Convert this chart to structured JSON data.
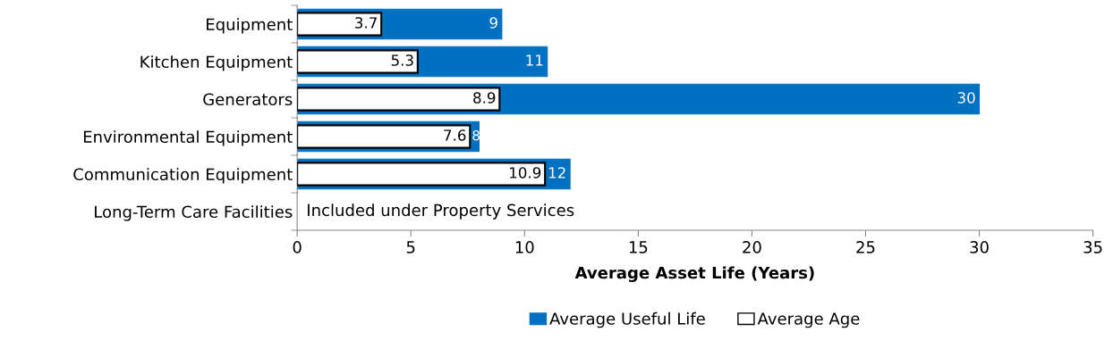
{
  "chart_data": {
    "type": "bar",
    "orientation": "horizontal",
    "xlabel": "Average Asset Life (Years)",
    "categories": [
      "Equipment",
      "Kitchen Equipment",
      "Generators",
      "Environmental Equipment",
      "Communication Equipment",
      "Long-Term Care Facilities"
    ],
    "series": [
      {
        "name": "Average Useful Life",
        "color": "#0070c0",
        "values": [
          9,
          11,
          30,
          8,
          12,
          null
        ]
      },
      {
        "name": "Average Age",
        "color": "#ffffff",
        "values": [
          3.7,
          5.3,
          8.9,
          7.6,
          10.9,
          null
        ]
      }
    ],
    "xlim": [
      0,
      35
    ],
    "xticks": [
      0,
      5,
      10,
      15,
      20,
      25,
      30,
      35
    ],
    "data_labels": true,
    "grid": false,
    "legend": "bottom",
    "annotations": [
      "Included under Property Services"
    ]
  }
}
